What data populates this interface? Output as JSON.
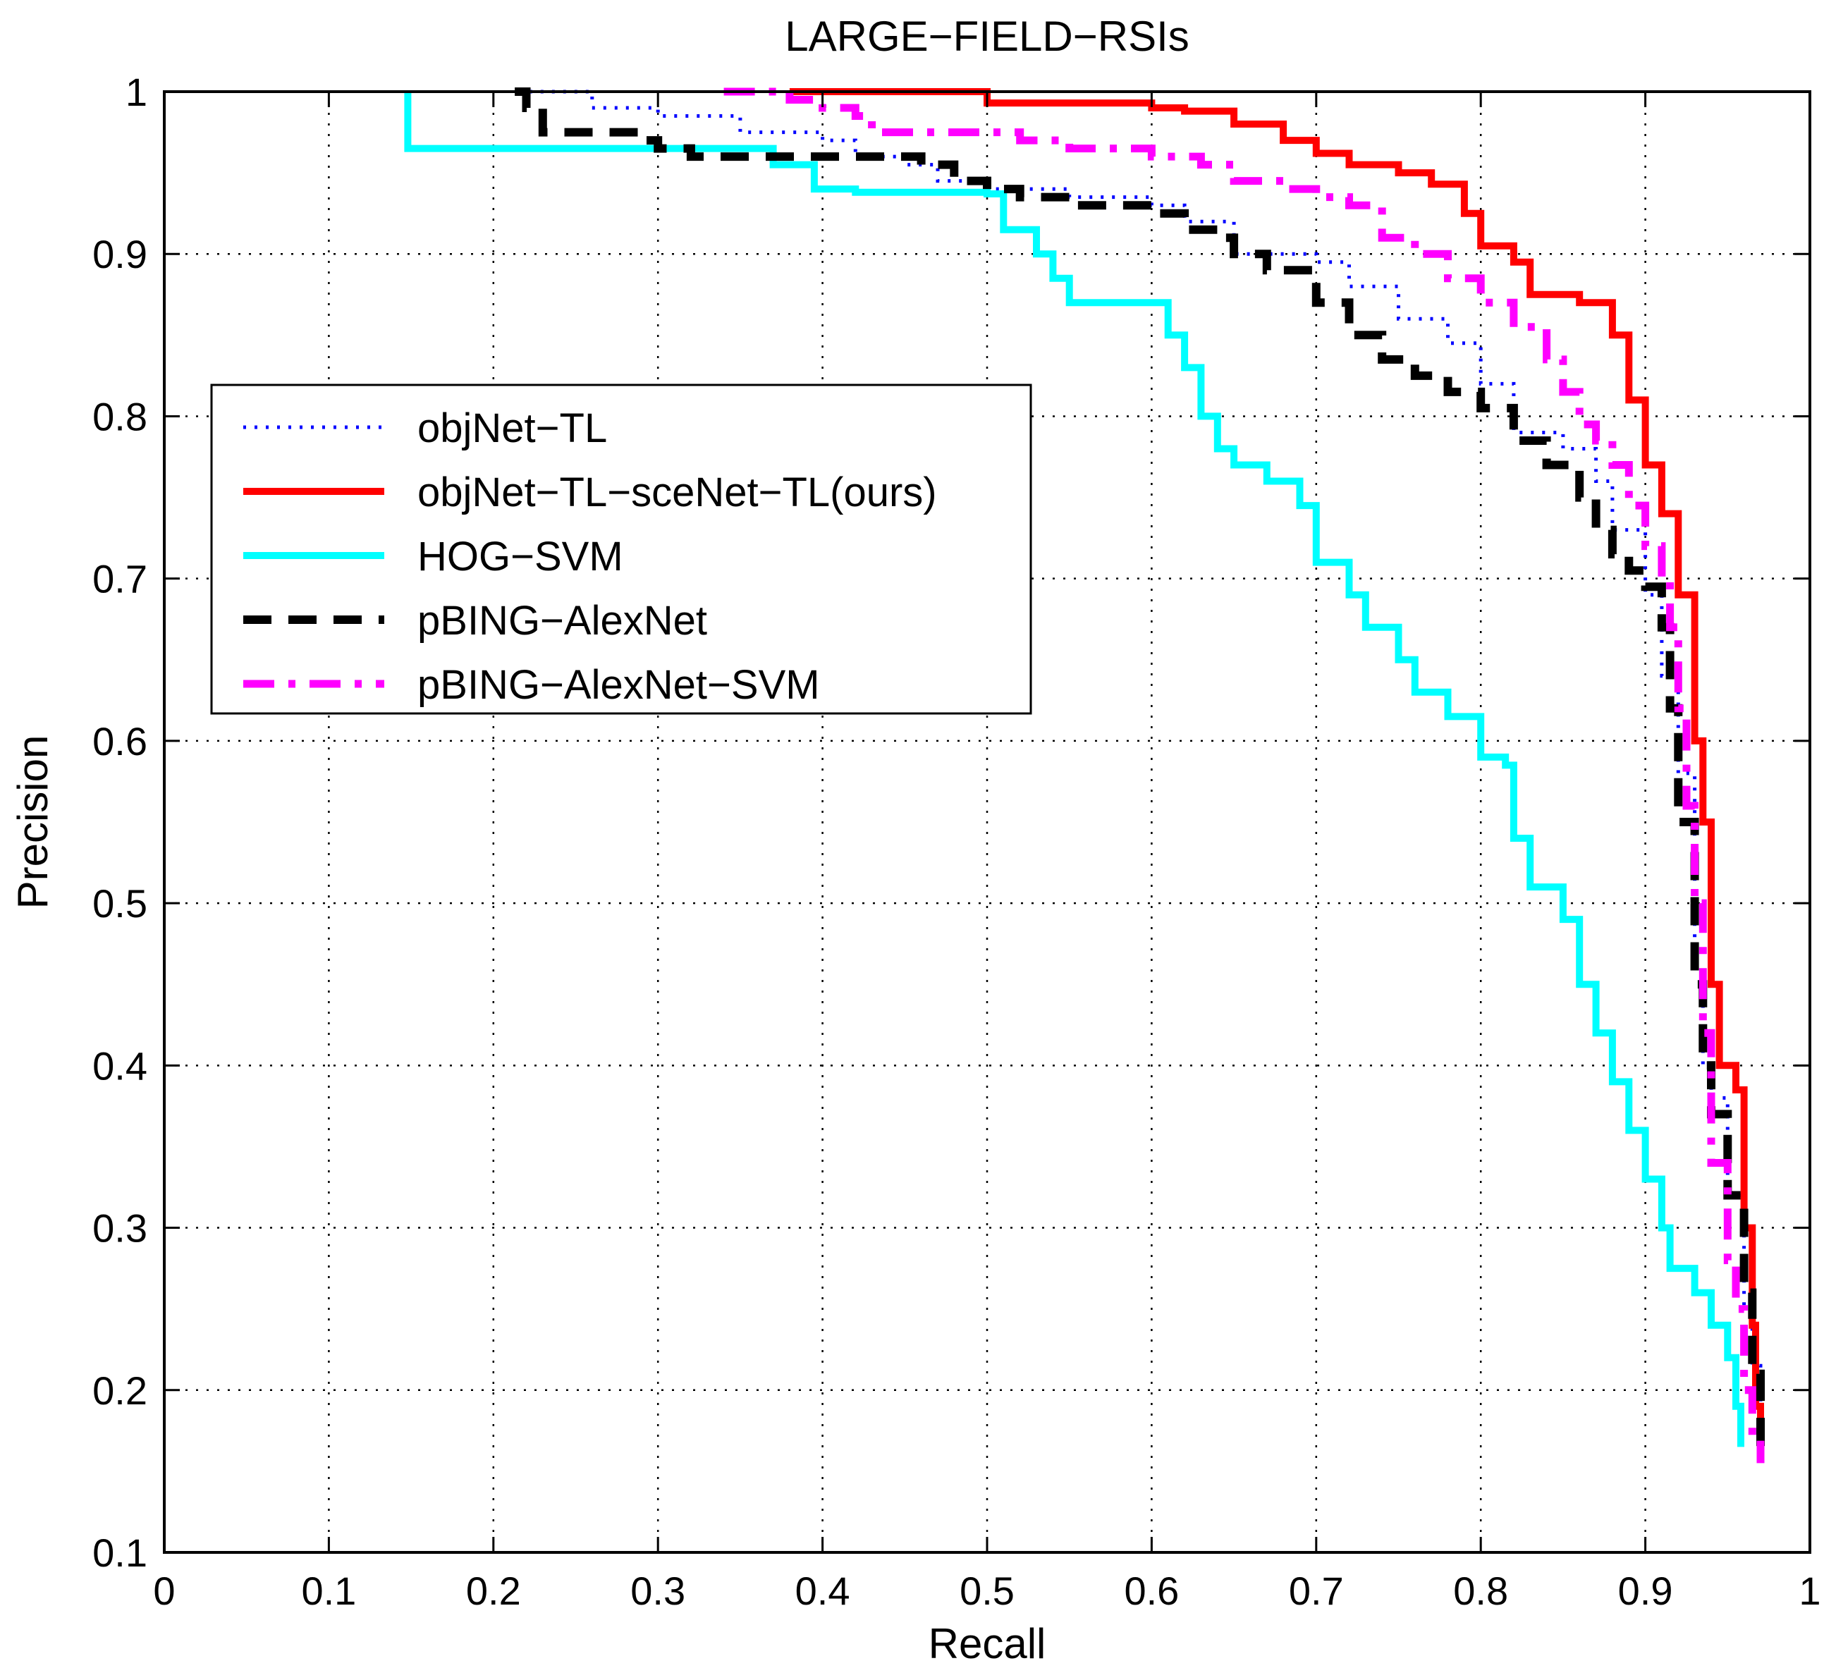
{
  "chart_data": {
    "type": "line",
    "title": "LARGE−FIELD−RSIs",
    "xlabel": "Recall",
    "ylabel": "Precision",
    "xlim": [
      0,
      1
    ],
    "ylim": [
      0.1,
      1
    ],
    "grid": true,
    "legend_position": "upper-left",
    "x_ticks": [
      0,
      0.1,
      0.2,
      0.3,
      0.4,
      0.5,
      0.6,
      0.7,
      0.8,
      0.9,
      1
    ],
    "x_tick_labels": [
      "0",
      "0.1",
      "0.2",
      "0.3",
      "0.4",
      "0.5",
      "0.6",
      "0.7",
      "0.8",
      "0.9",
      "1"
    ],
    "y_ticks": [
      0.1,
      0.2,
      0.3,
      0.4,
      0.5,
      0.6,
      0.7,
      0.8,
      0.9,
      1
    ],
    "y_tick_labels": [
      "0.1",
      "0.2",
      "0.3",
      "0.4",
      "0.5",
      "0.6",
      "0.7",
      "0.8",
      "0.9",
      "1"
    ],
    "series": [
      {
        "name": "objNet−TL",
        "color": "#0000ff",
        "style": "dotted",
        "points": [
          [
            0.215,
            1.0
          ],
          [
            0.25,
            1.0
          ],
          [
            0.26,
            0.99
          ],
          [
            0.3,
            0.985
          ],
          [
            0.35,
            0.975
          ],
          [
            0.4,
            0.97
          ],
          [
            0.42,
            0.96
          ],
          [
            0.45,
            0.955
          ],
          [
            0.47,
            0.945
          ],
          [
            0.5,
            0.94
          ],
          [
            0.55,
            0.935
          ],
          [
            0.6,
            0.93
          ],
          [
            0.62,
            0.92
          ],
          [
            0.65,
            0.9
          ],
          [
            0.7,
            0.895
          ],
          [
            0.72,
            0.88
          ],
          [
            0.75,
            0.86
          ],
          [
            0.78,
            0.845
          ],
          [
            0.8,
            0.82
          ],
          [
            0.82,
            0.79
          ],
          [
            0.85,
            0.78
          ],
          [
            0.87,
            0.76
          ],
          [
            0.88,
            0.73
          ],
          [
            0.9,
            0.69
          ],
          [
            0.91,
            0.64
          ],
          [
            0.92,
            0.58
          ],
          [
            0.93,
            0.46
          ],
          [
            0.935,
            0.4
          ],
          [
            0.94,
            0.38
          ],
          [
            0.95,
            0.32
          ],
          [
            0.96,
            0.25
          ],
          [
            0.965,
            0.215
          ],
          [
            0.97,
            0.2
          ],
          [
            0.97,
            0.19
          ]
        ]
      },
      {
        "name": "objNet−TL−sceNet−TL(ours)",
        "color": "#ff0000",
        "style": "solid",
        "points": [
          [
            0.38,
            1.0
          ],
          [
            0.45,
            1.0
          ],
          [
            0.5,
            0.993
          ],
          [
            0.6,
            0.99
          ],
          [
            0.62,
            0.988
          ],
          [
            0.65,
            0.98
          ],
          [
            0.68,
            0.97
          ],
          [
            0.7,
            0.962
          ],
          [
            0.72,
            0.955
          ],
          [
            0.75,
            0.95
          ],
          [
            0.77,
            0.943
          ],
          [
            0.79,
            0.925
          ],
          [
            0.8,
            0.905
          ],
          [
            0.82,
            0.895
          ],
          [
            0.83,
            0.875
          ],
          [
            0.86,
            0.87
          ],
          [
            0.88,
            0.85
          ],
          [
            0.89,
            0.81
          ],
          [
            0.9,
            0.77
          ],
          [
            0.91,
            0.74
          ],
          [
            0.92,
            0.69
          ],
          [
            0.93,
            0.6
          ],
          [
            0.935,
            0.55
          ],
          [
            0.94,
            0.45
          ],
          [
            0.945,
            0.4
          ],
          [
            0.955,
            0.385
          ],
          [
            0.96,
            0.3
          ],
          [
            0.965,
            0.24
          ],
          [
            0.967,
            0.19
          ],
          [
            0.97,
            0.18
          ],
          [
            0.97,
            0.17
          ]
        ]
      },
      {
        "name": "HOG−SVM",
        "color": "#00ffff",
        "style": "solid",
        "points": [
          [
            0.148,
            1.0
          ],
          [
            0.148,
            0.965
          ],
          [
            0.35,
            0.965
          ],
          [
            0.37,
            0.955
          ],
          [
            0.39,
            0.955
          ],
          [
            0.395,
            0.94
          ],
          [
            0.42,
            0.938
          ],
          [
            0.5,
            0.937
          ],
          [
            0.51,
            0.915
          ],
          [
            0.53,
            0.9
          ],
          [
            0.54,
            0.885
          ],
          [
            0.55,
            0.87
          ],
          [
            0.6,
            0.87
          ],
          [
            0.61,
            0.85
          ],
          [
            0.62,
            0.83
          ],
          [
            0.63,
            0.8
          ],
          [
            0.64,
            0.78
          ],
          [
            0.65,
            0.77
          ],
          [
            0.67,
            0.76
          ],
          [
            0.69,
            0.745
          ],
          [
            0.7,
            0.71
          ],
          [
            0.72,
            0.69
          ],
          [
            0.73,
            0.67
          ],
          [
            0.75,
            0.65
          ],
          [
            0.76,
            0.63
          ],
          [
            0.78,
            0.615
          ],
          [
            0.8,
            0.59
          ],
          [
            0.815,
            0.585
          ],
          [
            0.82,
            0.54
          ],
          [
            0.83,
            0.51
          ],
          [
            0.85,
            0.49
          ],
          [
            0.86,
            0.45
          ],
          [
            0.87,
            0.42
          ],
          [
            0.88,
            0.39
          ],
          [
            0.89,
            0.36
          ],
          [
            0.9,
            0.33
          ],
          [
            0.91,
            0.3
          ],
          [
            0.915,
            0.275
          ],
          [
            0.93,
            0.26
          ],
          [
            0.94,
            0.24
          ],
          [
            0.95,
            0.22
          ],
          [
            0.955,
            0.19
          ],
          [
            0.958,
            0.165
          ]
        ]
      },
      {
        "name": "pBING−AlexNet",
        "color": "#000000",
        "style": "dashed",
        "points": [
          [
            0.213,
            1.0
          ],
          [
            0.22,
            0.99
          ],
          [
            0.23,
            0.975
          ],
          [
            0.27,
            0.975
          ],
          [
            0.29,
            0.97
          ],
          [
            0.3,
            0.965
          ],
          [
            0.32,
            0.96
          ],
          [
            0.4,
            0.96
          ],
          [
            0.43,
            0.96
          ],
          [
            0.46,
            0.955
          ],
          [
            0.48,
            0.945
          ],
          [
            0.5,
            0.94
          ],
          [
            0.52,
            0.935
          ],
          [
            0.55,
            0.93
          ],
          [
            0.6,
            0.925
          ],
          [
            0.62,
            0.915
          ],
          [
            0.64,
            0.91
          ],
          [
            0.65,
            0.9
          ],
          [
            0.67,
            0.89
          ],
          [
            0.7,
            0.87
          ],
          [
            0.72,
            0.85
          ],
          [
            0.74,
            0.835
          ],
          [
            0.76,
            0.825
          ],
          [
            0.78,
            0.815
          ],
          [
            0.8,
            0.805
          ],
          [
            0.82,
            0.785
          ],
          [
            0.84,
            0.77
          ],
          [
            0.86,
            0.75
          ],
          [
            0.87,
            0.73
          ],
          [
            0.88,
            0.715
          ],
          [
            0.89,
            0.705
          ],
          [
            0.9,
            0.695
          ],
          [
            0.91,
            0.67
          ],
          [
            0.915,
            0.62
          ],
          [
            0.92,
            0.55
          ],
          [
            0.93,
            0.45
          ],
          [
            0.935,
            0.4
          ],
          [
            0.94,
            0.37
          ],
          [
            0.95,
            0.32
          ],
          [
            0.96,
            0.26
          ],
          [
            0.965,
            0.21
          ],
          [
            0.97,
            0.18
          ],
          [
            0.97,
            0.165
          ]
        ]
      },
      {
        "name": "pBING−AlexNet−SVM",
        "color": "#ff00ff",
        "style": "dashdot",
        "points": [
          [
            0.34,
            1.0
          ],
          [
            0.36,
            1.0
          ],
          [
            0.38,
            0.995
          ],
          [
            0.4,
            0.99
          ],
          [
            0.42,
            0.985
          ],
          [
            0.43,
            0.975
          ],
          [
            0.5,
            0.975
          ],
          [
            0.52,
            0.97
          ],
          [
            0.55,
            0.965
          ],
          [
            0.6,
            0.96
          ],
          [
            0.63,
            0.955
          ],
          [
            0.65,
            0.945
          ],
          [
            0.68,
            0.94
          ],
          [
            0.7,
            0.935
          ],
          [
            0.72,
            0.93
          ],
          [
            0.74,
            0.91
          ],
          [
            0.76,
            0.9
          ],
          [
            0.78,
            0.885
          ],
          [
            0.8,
            0.87
          ],
          [
            0.82,
            0.855
          ],
          [
            0.84,
            0.835
          ],
          [
            0.85,
            0.815
          ],
          [
            0.86,
            0.795
          ],
          [
            0.87,
            0.785
          ],
          [
            0.88,
            0.77
          ],
          [
            0.89,
            0.745
          ],
          [
            0.9,
            0.72
          ],
          [
            0.91,
            0.7
          ],
          [
            0.915,
            0.67
          ],
          [
            0.92,
            0.62
          ],
          [
            0.925,
            0.56
          ],
          [
            0.93,
            0.5
          ],
          [
            0.935,
            0.42
          ],
          [
            0.94,
            0.34
          ],
          [
            0.95,
            0.28
          ],
          [
            0.955,
            0.25
          ],
          [
            0.96,
            0.2
          ],
          [
            0.965,
            0.17
          ],
          [
            0.97,
            0.155
          ]
        ]
      }
    ]
  }
}
